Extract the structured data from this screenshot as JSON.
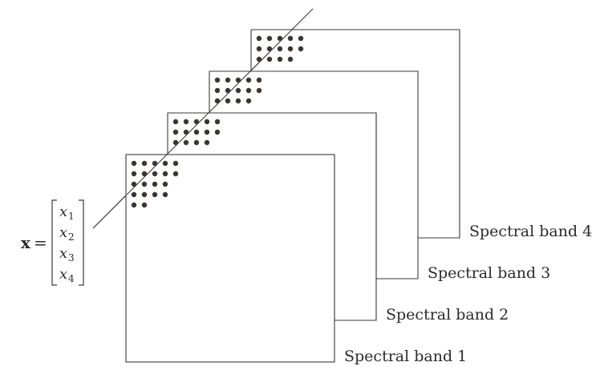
{
  "bands": [
    {
      "label": "Spectral band 4",
      "dot_rows": [
        5,
        5,
        4
      ]
    },
    {
      "label": "Spectral band 3",
      "dot_rows": [
        5,
        5,
        4
      ]
    },
    {
      "label": "Spectral band 2",
      "dot_rows": [
        5,
        5,
        4
      ]
    },
    {
      "label": "Spectral band 1",
      "dot_rows": [
        5,
        5,
        4,
        4,
        2
      ]
    }
  ],
  "vector": {
    "lhs": "x",
    "equals": "=",
    "components": [
      {
        "base": "x",
        "sub": "1"
      },
      {
        "base": "x",
        "sub": "2"
      },
      {
        "base": "x",
        "sub": "3"
      },
      {
        "base": "x",
        "sub": "4"
      }
    ]
  },
  "colors": {
    "dot": "#3a3530",
    "line": "#3a3a3a",
    "text": "#2b2b2b"
  }
}
